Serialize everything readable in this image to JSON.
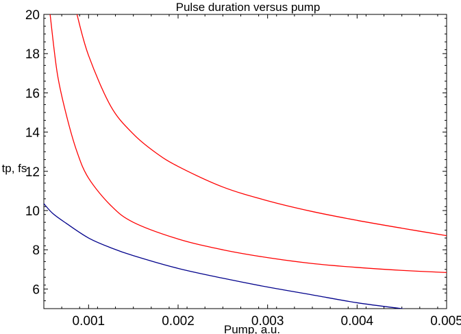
{
  "chart_data": {
    "type": "line",
    "title": "Pulse duration versus pump",
    "xlabel": "Pump, a.u.",
    "ylabel": "tp, fs",
    "xlim": [
      0.0005,
      0.005
    ],
    "ylim": [
      5,
      20
    ],
    "grid": false,
    "legend": "none",
    "x_ticks": [
      0.001,
      0.002,
      0.003,
      0.004,
      0.005
    ],
    "x_tick_labels": [
      "0.001",
      "0.002",
      "0.003",
      "0.004",
      "0.005"
    ],
    "y_ticks": [
      6,
      8,
      10,
      12,
      14,
      16,
      18,
      20
    ],
    "y_tick_labels": [
      "6",
      "8",
      "10",
      "12",
      "14",
      "16",
      "18",
      "20"
    ],
    "series": [
      {
        "color": "#ff0000",
        "points": [
          [
            0.00087,
            20.0
          ],
          [
            0.001,
            17.9
          ],
          [
            0.00125,
            15.3
          ],
          [
            0.0015,
            13.9
          ],
          [
            0.00175,
            12.95
          ],
          [
            0.002,
            12.25
          ],
          [
            0.0025,
            11.2
          ],
          [
            0.003,
            10.5
          ],
          [
            0.0035,
            9.95
          ],
          [
            0.004,
            9.5
          ],
          [
            0.0045,
            9.1
          ],
          [
            0.005,
            8.72
          ]
        ]
      },
      {
        "color": "#ff0000",
        "points": [
          [
            0.00057,
            20.0
          ],
          [
            0.00065,
            17.0
          ],
          [
            0.00075,
            14.9
          ],
          [
            0.00087,
            13.0
          ],
          [
            0.001,
            11.65
          ],
          [
            0.00125,
            10.25
          ],
          [
            0.0015,
            9.4
          ],
          [
            0.002,
            8.55
          ],
          [
            0.0025,
            8.0
          ],
          [
            0.003,
            7.6
          ],
          [
            0.0035,
            7.3
          ],
          [
            0.004,
            7.1
          ],
          [
            0.0045,
            6.95
          ],
          [
            0.005,
            6.84
          ]
        ]
      },
      {
        "color": "#00008b",
        "points": [
          [
            0.0005,
            10.35
          ],
          [
            0.0006,
            9.85
          ],
          [
            0.00075,
            9.35
          ],
          [
            0.001,
            8.6
          ],
          [
            0.00125,
            8.1
          ],
          [
            0.0015,
            7.7
          ],
          [
            0.002,
            7.05
          ],
          [
            0.0025,
            6.55
          ],
          [
            0.003,
            6.1
          ],
          [
            0.0035,
            5.7
          ],
          [
            0.004,
            5.3
          ],
          [
            0.0045,
            5.0
          ],
          [
            0.0047,
            4.9
          ]
        ]
      }
    ]
  }
}
